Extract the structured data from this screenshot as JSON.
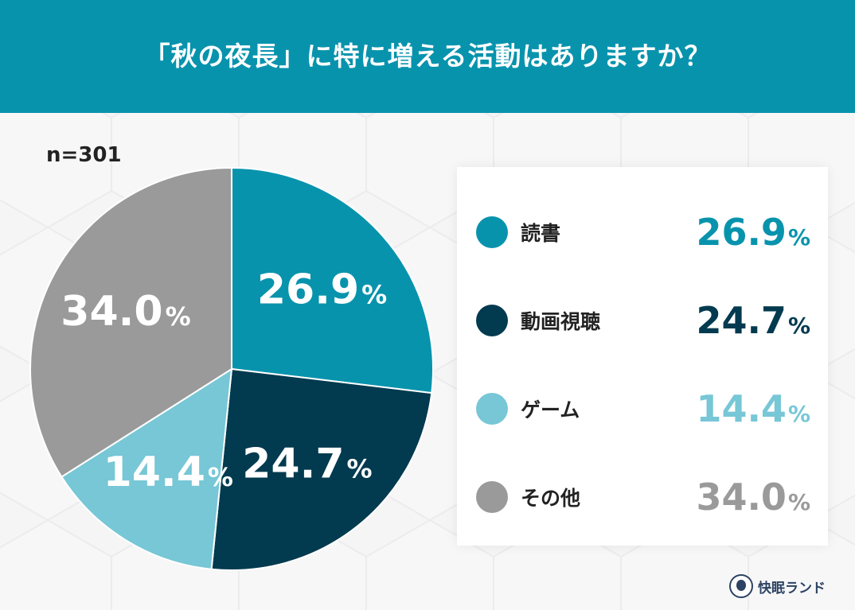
{
  "header": {
    "title": "「秋の夜長」に特に増える活動はありますか？"
  },
  "chart_data": {
    "type": "pie",
    "title": "「秋の夜長」に特に増える活動はありますか？",
    "sample_size": "n=301",
    "unit": "%",
    "slices": [
      {
        "label": "読書",
        "value": 26.9,
        "value_text": "26.9",
        "color": "#0893ad",
        "legend_color": "#0893ad"
      },
      {
        "label": "動画視聴",
        "value": 24.7,
        "value_text": "24.7",
        "color": "#023a4f",
        "legend_color": "#023a4f"
      },
      {
        "label": "ゲーム",
        "value": 14.4,
        "value_text": "14.4",
        "color": "#77c7d6",
        "legend_color": "#77c7d6"
      },
      {
        "label": "その他",
        "value": 34.0,
        "value_text": "34.0",
        "color": "#9a9a9b",
        "legend_color": "#9a9a9b"
      }
    ],
    "start_direction": "top",
    "direction": "clockwise",
    "legend_position": "right"
  },
  "brand": {
    "name": "快眠ランド",
    "icon": "sleeping-face-icon"
  }
}
